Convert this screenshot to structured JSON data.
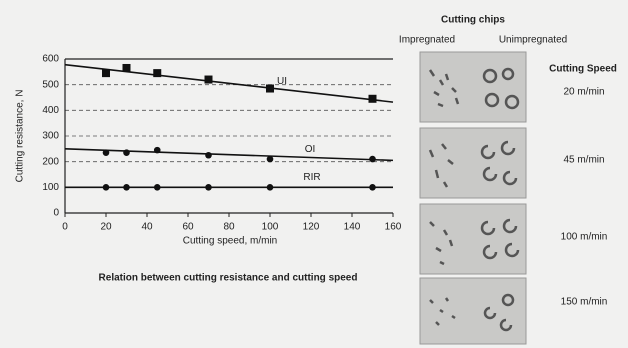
{
  "chart_data": {
    "type": "line",
    "x": [
      20,
      30,
      45,
      70,
      100,
      150
    ],
    "series": [
      {
        "name": "UI",
        "marker": "square",
        "color": "#111111",
        "values": [
          545,
          565,
          545,
          520,
          485,
          445
        ],
        "fit_x": [
          0,
          160
        ],
        "fit": [
          578,
          432
        ]
      },
      {
        "name": "OI",
        "marker": "circle",
        "color": "#111111",
        "values": [
          235,
          235,
          245,
          225,
          210,
          210
        ],
        "fit_x": [
          0,
          160
        ],
        "fit": [
          250,
          205
        ]
      },
      {
        "name": "RIR",
        "marker": "circle",
        "color": "#111111",
        "values": [
          100,
          100,
          100,
          100,
          100,
          100
        ],
        "fit_x": [
          0,
          160
        ],
        "fit": [
          100,
          100
        ]
      }
    ],
    "xlim": [
      0,
      160
    ],
    "ylim": [
      0,
      600
    ],
    "xticks": [
      0,
      20,
      40,
      60,
      80,
      100,
      120,
      140,
      160
    ],
    "yticks": [
      0,
      100,
      200,
      300,
      400,
      500,
      600
    ],
    "xlabel": "Cutting speed, m/min",
    "ylabel": "Cutting resistance, N",
    "caption": "Relation between cutting resistance and cutting speed",
    "grid": "dashed"
  },
  "chips_panel": {
    "title": "Cutting chips",
    "columns": [
      "Impregnated",
      "Unimpregnated"
    ],
    "speed_header": "Cutting Speed",
    "speeds": [
      "20 m/min",
      "45 m/min",
      "100 m/min",
      "150 m/min"
    ]
  }
}
